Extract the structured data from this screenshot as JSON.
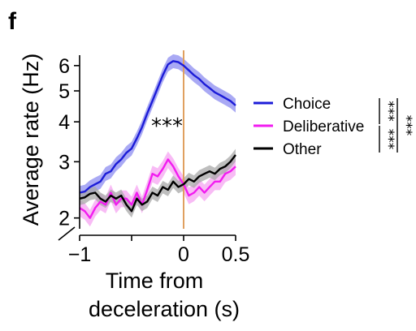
{
  "panel_label": "f",
  "chart_data": {
    "type": "line",
    "xlabel_lines": [
      "Time from",
      "deceleration (s)"
    ],
    "ylabel": "Average rate (Hz)",
    "y_scale": "log",
    "xlim": [
      -1.0,
      0.5
    ],
    "ylim": [
      1.85,
      6.7
    ],
    "x_ticks": [
      -1,
      0,
      0.5
    ],
    "x_tick_labels": [
      "−1",
      "0",
      "0.5"
    ],
    "y_ticks": [
      2,
      3,
      4,
      5,
      6
    ],
    "y_tick_labels": [
      "2",
      "3",
      "4",
      "5",
      "6"
    ],
    "event_marker_x": 0,
    "event_marker_color": "#e0a060",
    "annotation": "***",
    "annotation_at": [
      -0.16,
      4.0
    ],
    "legend_position": "right",
    "series": [
      {
        "name": "Choice",
        "color": "#1c1cd8",
        "band_color": "#8c8cf0",
        "x": [
          -1.0,
          -0.95,
          -0.9,
          -0.85,
          -0.8,
          -0.75,
          -0.7,
          -0.65,
          -0.6,
          -0.55,
          -0.5,
          -0.45,
          -0.4,
          -0.35,
          -0.3,
          -0.25,
          -0.2,
          -0.15,
          -0.1,
          -0.05,
          0.0,
          0.05,
          0.1,
          0.15,
          0.2,
          0.25,
          0.3,
          0.35,
          0.4,
          0.45,
          0.5
        ],
        "y": [
          2.4,
          2.42,
          2.5,
          2.55,
          2.6,
          2.75,
          2.8,
          2.95,
          3.05,
          3.2,
          3.3,
          3.55,
          3.85,
          4.25,
          4.65,
          5.1,
          5.6,
          6.05,
          6.2,
          6.15,
          6.0,
          5.8,
          5.6,
          5.45,
          5.25,
          5.1,
          4.95,
          4.85,
          4.75,
          4.65,
          4.5
        ],
        "band": 0.05
      },
      {
        "name": "Deliberative",
        "color": "#f21cf0",
        "band_color": "#f5a4f2",
        "x": [
          -1.0,
          -0.95,
          -0.9,
          -0.85,
          -0.8,
          -0.75,
          -0.7,
          -0.65,
          -0.6,
          -0.55,
          -0.5,
          -0.45,
          -0.4,
          -0.35,
          -0.3,
          -0.25,
          -0.2,
          -0.15,
          -0.1,
          -0.05,
          0.0,
          0.05,
          0.1,
          0.15,
          0.2,
          0.25,
          0.3,
          0.35,
          0.4,
          0.45,
          0.5
        ],
        "y": [
          2.15,
          2.1,
          2.0,
          2.15,
          2.25,
          2.2,
          2.4,
          2.2,
          2.3,
          2.3,
          2.2,
          2.4,
          2.2,
          2.45,
          2.75,
          2.7,
          2.85,
          3.05,
          2.9,
          2.7,
          2.55,
          2.35,
          2.4,
          2.5,
          2.4,
          2.5,
          2.6,
          2.6,
          2.75,
          2.8,
          2.9
        ],
        "band": 0.06
      },
      {
        "name": "Other",
        "color": "#000000",
        "band_color": "#a8a8a8",
        "x": [
          -1.0,
          -0.95,
          -0.9,
          -0.85,
          -0.8,
          -0.75,
          -0.7,
          -0.65,
          -0.6,
          -0.55,
          -0.5,
          -0.45,
          -0.4,
          -0.35,
          -0.3,
          -0.25,
          -0.2,
          -0.15,
          -0.1,
          -0.05,
          0.0,
          0.05,
          0.1,
          0.15,
          0.2,
          0.25,
          0.3,
          0.35,
          0.4,
          0.45,
          0.5
        ],
        "y": [
          2.3,
          2.32,
          2.38,
          2.4,
          2.3,
          2.25,
          2.35,
          2.3,
          2.35,
          2.2,
          2.1,
          2.3,
          2.2,
          2.25,
          2.4,
          2.35,
          2.5,
          2.45,
          2.6,
          2.5,
          2.55,
          2.65,
          2.6,
          2.7,
          2.75,
          2.8,
          2.75,
          2.85,
          2.9,
          3.0,
          3.15
        ],
        "band": 0.045
      }
    ],
    "significance_stars": [
      "***",
      "***",
      "***"
    ]
  }
}
